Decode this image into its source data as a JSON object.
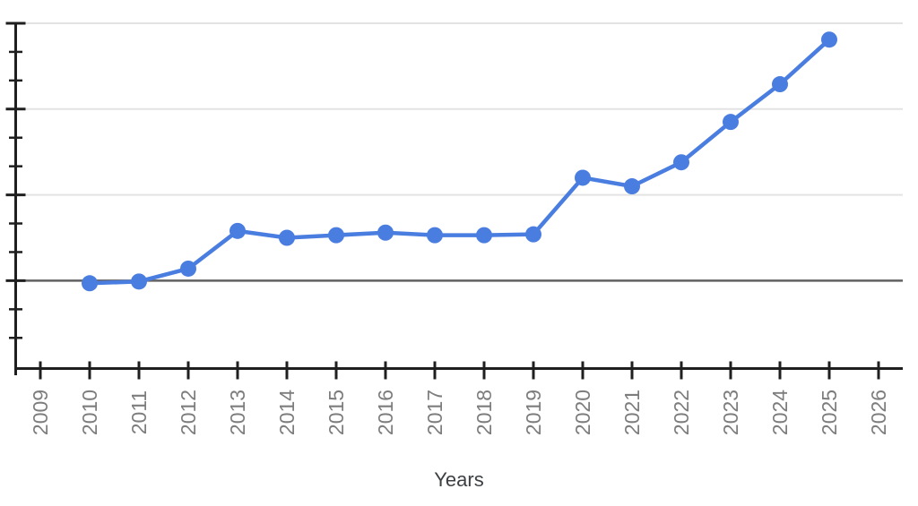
{
  "chart_data": {
    "type": "line",
    "title": "",
    "xlabel": "Years",
    "ylabel": "",
    "legend": false,
    "grid": true,
    "x_tick_labels": [
      "2009",
      "2010",
      "2011",
      "2012",
      "2013",
      "2014",
      "2015",
      "2016",
      "2017",
      "2018",
      "2019",
      "2020",
      "2021",
      "2022",
      "2023",
      "2024",
      "2025",
      "2026"
    ],
    "x": [
      2010,
      2011,
      2012,
      2013,
      2014,
      2015,
      2016,
      2017,
      2018,
      2019,
      2020,
      2021,
      2022,
      2023,
      2024,
      2025
    ],
    "values": [
      -0.03,
      -0.01,
      0.14,
      0.58,
      0.5,
      0.53,
      0.56,
      0.53,
      0.53,
      0.54,
      1.2,
      1.1,
      1.38,
      1.85,
      2.29,
      2.81
    ],
    "y_axis": {
      "labels_visible": false,
      "unit_note": "y values estimated in major-gridline intervals above the dark baseline (no y-axis labels shown)",
      "baseline_value": 0,
      "major_gridline_values": [
        0,
        1,
        2,
        3
      ],
      "minor_divisions_per_major": 3,
      "ylim": [
        -1,
        3
      ]
    },
    "xlim": [
      2008.5,
      2026.5
    ],
    "marker": "circle",
    "series_name": ""
  },
  "colors": {
    "series": "#4a7de0",
    "gridline": "#e3e3e3",
    "baseline": "#616161",
    "axis": "#1f1f1f",
    "tick_label": "#7d7d7d",
    "axis_title": "#3c4043",
    "background": "#ffffff"
  }
}
